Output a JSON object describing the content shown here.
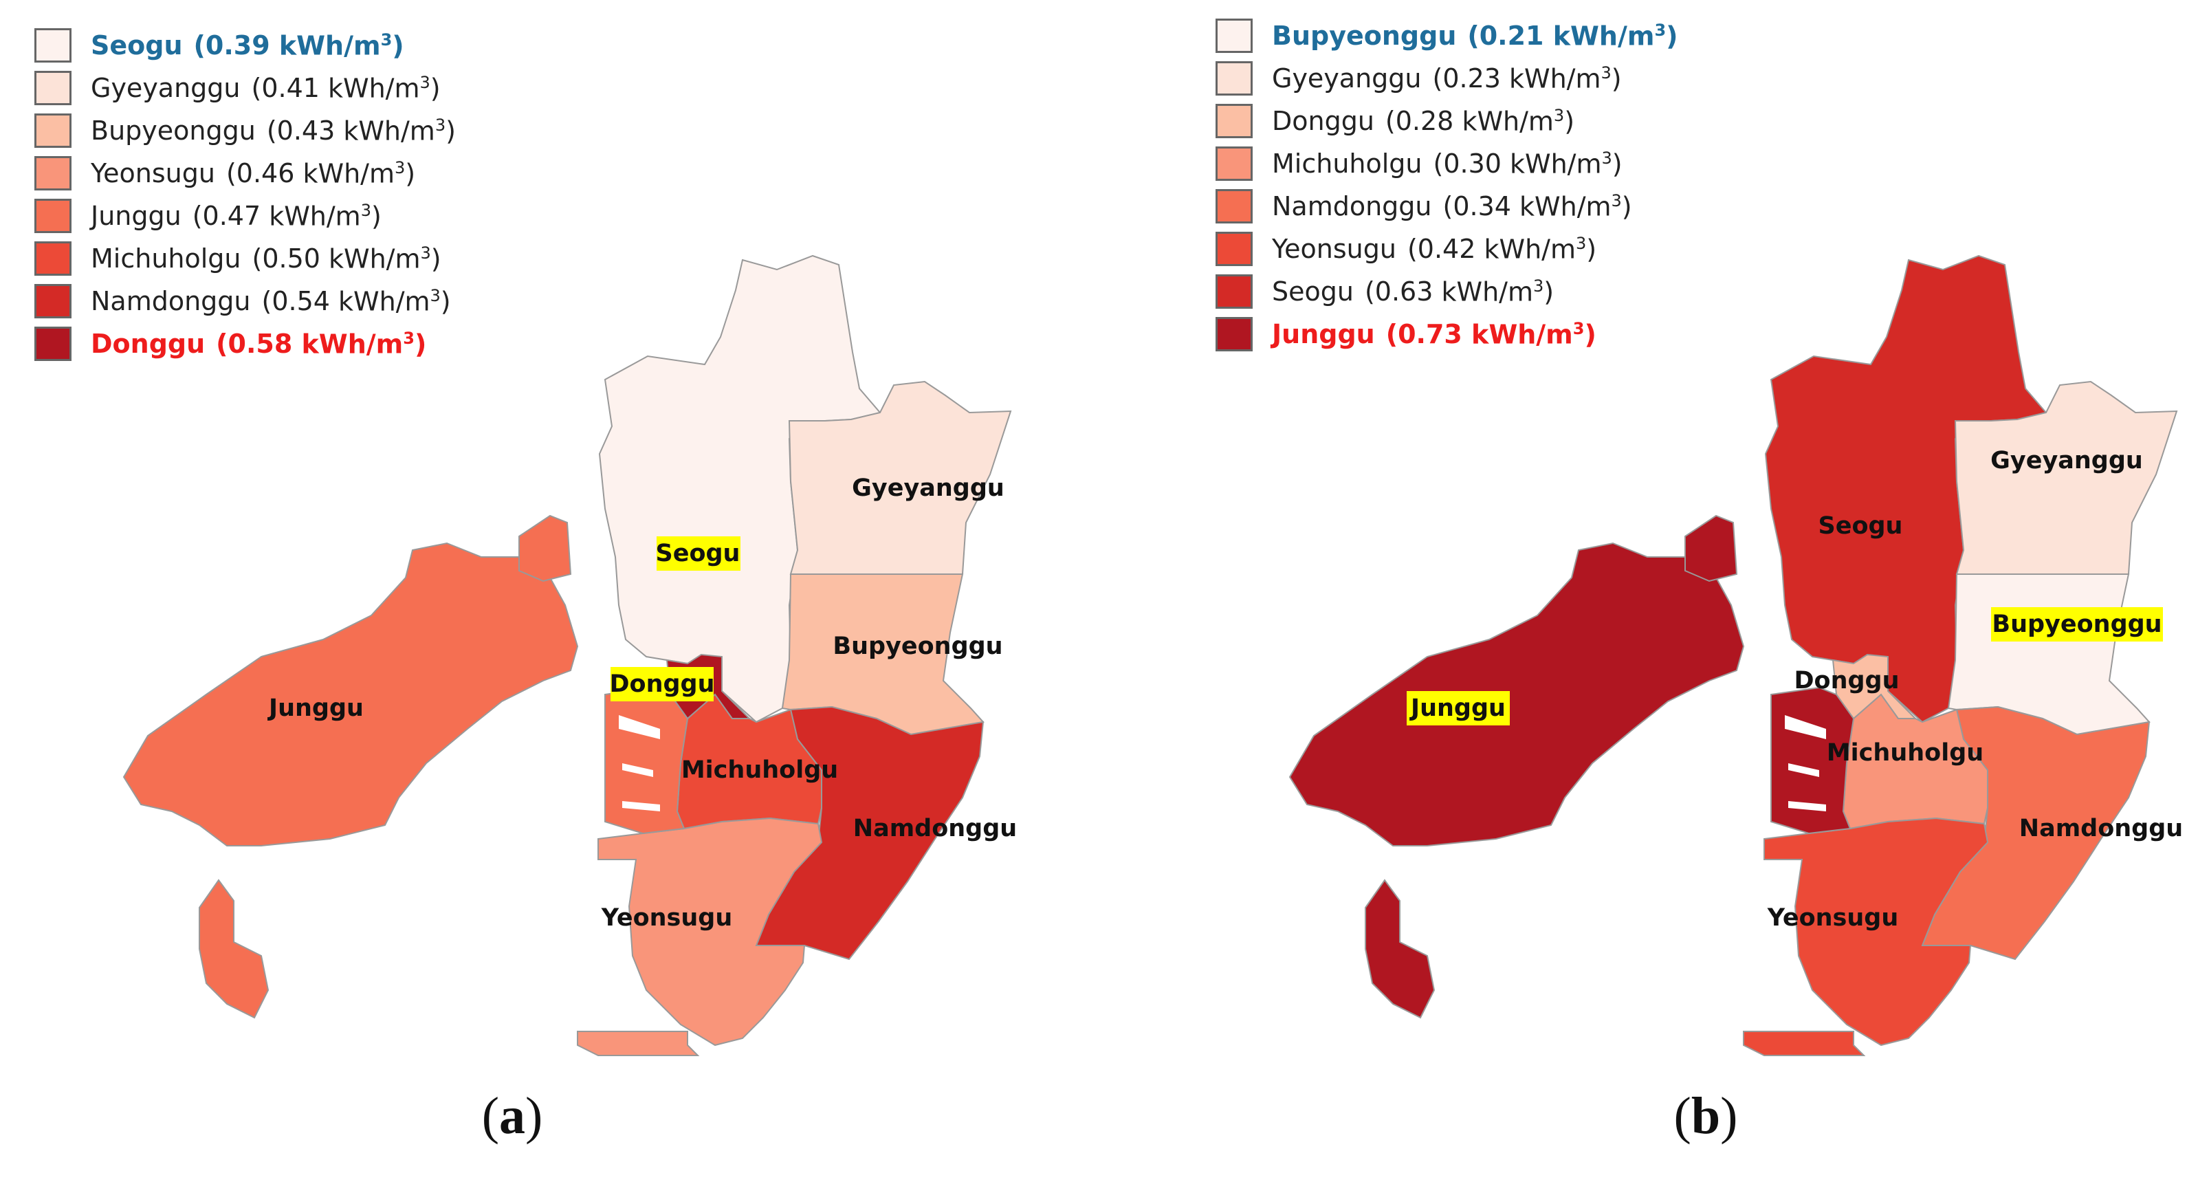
{
  "panels": [
    {
      "caption": "a",
      "legend": [
        {
          "name": "Seogu",
          "value": "(0.39",
          "unit": "kWh/m",
          "sup": "3",
          "close": ")",
          "color": "#fdf2ee",
          "highlight": "min"
        },
        {
          "name": "Gyeyanggu",
          "value": "(0.41",
          "unit": "kWh/m",
          "sup": "3",
          "close": ")",
          "color": "#fce3d8",
          "highlight": ""
        },
        {
          "name": "Bupyeonggu",
          "value": "(0.43",
          "unit": "kWh/m",
          "sup": "3",
          "close": ")",
          "color": "#fbbfa4",
          "highlight": ""
        },
        {
          "name": "Yeonsugu",
          "value": "(0.46",
          "unit": "kWh/m",
          "sup": "3",
          "close": ")",
          "color": "#f9957a",
          "highlight": ""
        },
        {
          "name": "Junggu",
          "value": "(0.47",
          "unit": "kWh/m",
          "sup": "3",
          "close": ")",
          "color": "#f56f52",
          "highlight": ""
        },
        {
          "name": "Michuholgu",
          "value": "(0.50",
          "unit": "kWh/m",
          "sup": "3",
          "close": ")",
          "color": "#ec4a37",
          "highlight": ""
        },
        {
          "name": "Namdonggu",
          "value": "(0.54",
          "unit": "kWh/m",
          "sup": "3",
          "close": ")",
          "color": "#d42a26",
          "highlight": ""
        },
        {
          "name": "Donggu",
          "value": "(0.58",
          "unit": "kWh/m",
          "sup": "3",
          "close": ")",
          "color": "#b01621",
          "highlight": "max"
        }
      ],
      "districts": {
        "Seogu": {
          "label": "Seogu",
          "color": "#fdf2ee",
          "highlight": "min"
        },
        "Gyeyanggu": {
          "label": "Gyeyanggu",
          "color": "#fce3d8",
          "highlight": ""
        },
        "Bupyeonggu": {
          "label": "Bupyeonggu",
          "color": "#fbbfa4",
          "highlight": ""
        },
        "Yeonsugu": {
          "label": "Yeonsugu",
          "color": "#f9957a",
          "highlight": ""
        },
        "Junggu": {
          "label": "Junggu",
          "color": "#f56f52",
          "highlight": ""
        },
        "Michuholgu": {
          "label": "Michuholgu",
          "color": "#ec4a37",
          "highlight": ""
        },
        "Namdonggu": {
          "label": "Namdonggu",
          "color": "#d42a26",
          "highlight": ""
        },
        "Donggu": {
          "label": "Donggu",
          "color": "#b01621",
          "highlight": "max"
        }
      }
    },
    {
      "caption": "b",
      "legend": [
        {
          "name": "Bupyeonggu",
          "value": "(0.21",
          "unit": "kWh/m",
          "sup": "3",
          "close": ")",
          "color": "#fdf2ee",
          "highlight": "min"
        },
        {
          "name": "Gyeyanggu",
          "value": "(0.23",
          "unit": "kWh/m",
          "sup": "3",
          "close": ")",
          "color": "#fce3d8",
          "highlight": ""
        },
        {
          "name": "Donggu",
          "value": "(0.28",
          "unit": "kWh/m",
          "sup": "3",
          "close": ")",
          "color": "#fbbfa4",
          "highlight": ""
        },
        {
          "name": "Michuholgu",
          "value": "(0.30",
          "unit": "kWh/m",
          "sup": "3",
          "close": ")",
          "color": "#f9957a",
          "highlight": ""
        },
        {
          "name": "Namdonggu",
          "value": "(0.34",
          "unit": "kWh/m",
          "sup": "3",
          "close": ")",
          "color": "#f56f52",
          "highlight": ""
        },
        {
          "name": "Yeonsugu",
          "value": "(0.42",
          "unit": "kWh/m",
          "sup": "3",
          "close": ")",
          "color": "#ec4a37",
          "highlight": ""
        },
        {
          "name": "Seogu",
          "value": "(0.63",
          "unit": "kWh/m",
          "sup": "3",
          "close": ")",
          "color": "#d42a26",
          "highlight": ""
        },
        {
          "name": "Junggu",
          "value": "(0.73",
          "unit": "kWh/m",
          "sup": "3",
          "close": ")",
          "color": "#b01621",
          "highlight": "max"
        }
      ],
      "districts": {
        "Seogu": {
          "label": "Seogu",
          "color": "#d42a26",
          "highlight": ""
        },
        "Gyeyanggu": {
          "label": "Gyeyanggu",
          "color": "#fce3d8",
          "highlight": ""
        },
        "Bupyeonggu": {
          "label": "Bupyeonggu",
          "color": "#fdf2ee",
          "highlight": "min"
        },
        "Yeonsugu": {
          "label": "Yeonsugu",
          "color": "#ec4a37",
          "highlight": ""
        },
        "Junggu": {
          "label": "Junggu",
          "color": "#b01621",
          "highlight": "max"
        },
        "Michuholgu": {
          "label": "Michuholgu",
          "color": "#f9957a",
          "highlight": ""
        },
        "Namdonggu": {
          "label": "Namdonggu",
          "color": "#f56f52",
          "highlight": ""
        },
        "Donggu": {
          "label": "Donggu",
          "color": "#fbbfa4",
          "highlight": ""
        }
      }
    }
  ],
  "style": {
    "highlight_min_text": "#1f6d9b",
    "highlight_max_text": "#ee1c1c",
    "highlight_label_bg": "#ffff00"
  }
}
